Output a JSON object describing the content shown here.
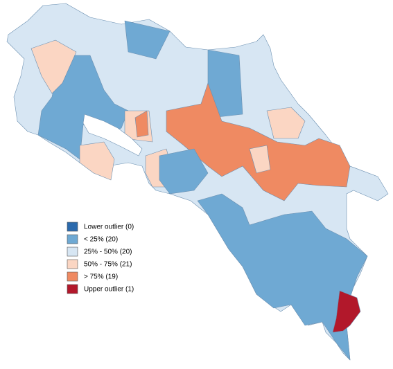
{
  "legend": {
    "items": [
      {
        "label": "Lower outlier (0)",
        "color": "#2b6aad"
      },
      {
        "label": "< 25% (20)",
        "color": "#6fa9d3"
      },
      {
        "label": "25% - 50% (20)",
        "color": "#d7e6f3"
      },
      {
        "label": "50% - 75% (21)",
        "color": "#fbd6c3"
      },
      {
        "label": "> 75% (19)",
        "color": "#ef8a62"
      },
      {
        "label": "Upper outlier (1)",
        "color": "#b2182b"
      }
    ]
  }
}
